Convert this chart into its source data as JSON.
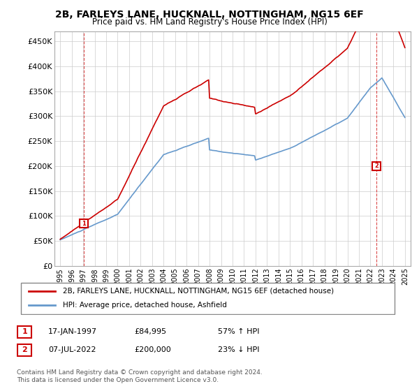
{
  "title": "2B, FARLEYS LANE, HUCKNALL, NOTTINGHAM, NG15 6EF",
  "subtitle": "Price paid vs. HM Land Registry's House Price Index (HPI)",
  "ylabel_ticks": [
    "£0",
    "£50K",
    "£100K",
    "£150K",
    "£200K",
    "£250K",
    "£300K",
    "£350K",
    "£400K",
    "£450K"
  ],
  "ytick_vals": [
    0,
    50000,
    100000,
    150000,
    200000,
    250000,
    300000,
    350000,
    400000,
    450000
  ],
  "ylim": [
    0,
    470000
  ],
  "xlim_start": 1995.0,
  "xlim_end": 2025.5,
  "hpi_color": "#6699cc",
  "price_color": "#cc0000",
  "marker1_label": "1",
  "marker2_label": "2",
  "point1_x": 1997.05,
  "point1_y": 84995,
  "point2_x": 2022.52,
  "point2_y": 200000,
  "legend_line1": "2B, FARLEYS LANE, HUCKNALL, NOTTINGHAM, NG15 6EF (detached house)",
  "legend_line2": "HPI: Average price, detached house, Ashfield",
  "table_row1": [
    "1",
    "17-JAN-1997",
    "£84,995",
    "57% ↑ HPI"
  ],
  "table_row2": [
    "2",
    "07-JUL-2022",
    "£200,000",
    "23% ↓ HPI"
  ],
  "footer": "Contains HM Land Registry data © Crown copyright and database right 2024.\nThis data is licensed under the Open Government Licence v3.0.",
  "background_color": "#ffffff",
  "grid_color": "#cccccc"
}
